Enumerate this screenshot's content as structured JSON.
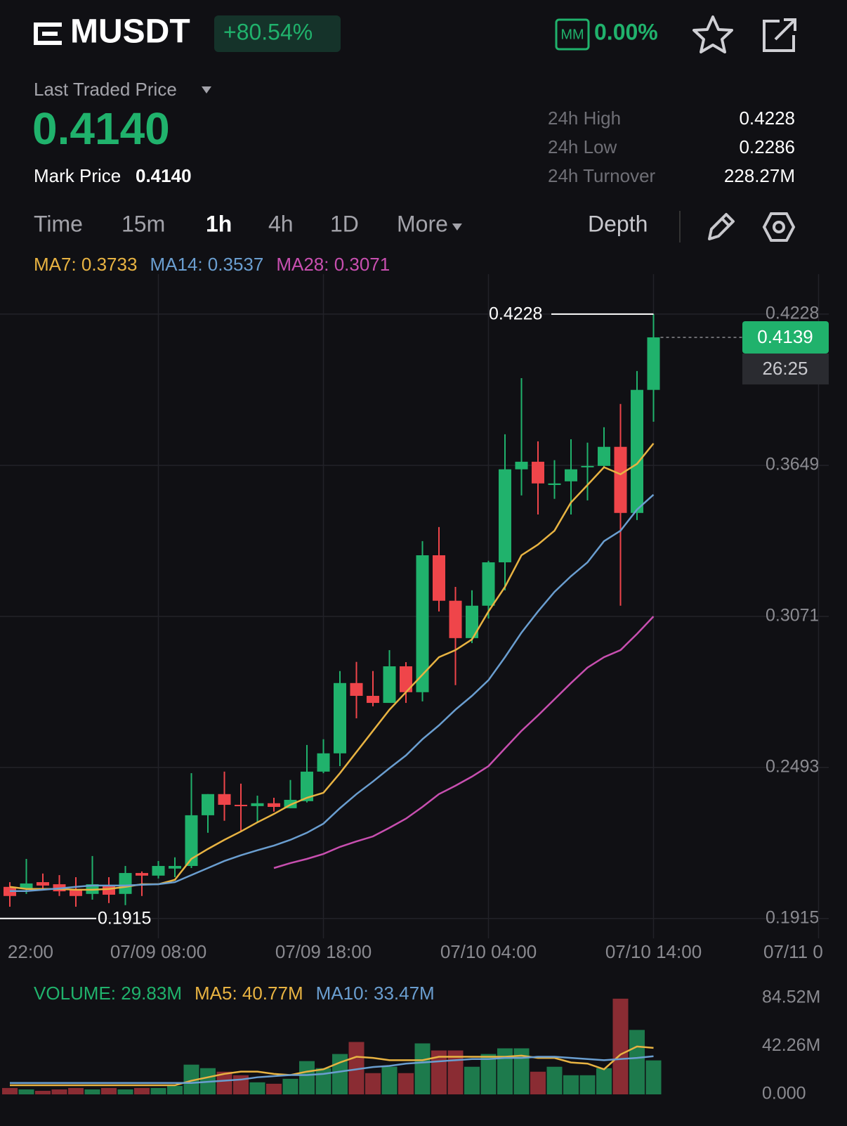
{
  "header": {
    "symbol": "MUSDT",
    "change": "+80.54%",
    "mm_badge": "MM",
    "mm_rate": "0.00%"
  },
  "price": {
    "label": "Last Traded Price",
    "last": "0.4140",
    "mark_label": "Mark Price",
    "mark": "0.4140"
  },
  "stats": [
    {
      "label": "24h High",
      "value": "0.4228"
    },
    {
      "label": "24h Low",
      "value": "0.2286"
    },
    {
      "label": "24h Turnover",
      "value": "228.27M"
    }
  ],
  "tabs": {
    "items": [
      "Time",
      "15m",
      "1h",
      "4h",
      "1D",
      "More"
    ],
    "active": 2,
    "depth": "Depth"
  },
  "chart_data": [
    {
      "type": "candlestick",
      "indicator_labels": [
        {
          "text": "MA7: 0.3733",
          "color": "#e8b342"
        },
        {
          "text": "MA14: 0.3537",
          "color": "#6a9ed0"
        },
        {
          "text": "MA28: 0.3071",
          "color": "#c84fb0"
        }
      ],
      "categories": [
        null,
        null,
        null,
        null,
        null,
        null,
        null,
        null,
        null,
        "07/09 08:00",
        null,
        null,
        null,
        null,
        null,
        null,
        null,
        null,
        null,
        "07/09 18:00",
        null,
        null,
        null,
        null,
        null,
        null,
        null,
        null,
        null,
        "07/10 04:00",
        null,
        null,
        null,
        null,
        null,
        null,
        null,
        null,
        null,
        "07/10 14:00"
      ],
      "x_edge_labels": [
        "22:00",
        "07/11 0"
      ],
      "open": [
        0.2036,
        0.2028,
        0.2054,
        0.2046,
        0.2028,
        0.2009,
        0.2041,
        0.2009,
        0.2089,
        0.2079,
        0.2106,
        0.2116,
        0.231,
        0.2391,
        0.235,
        0.2345,
        0.2356,
        0.2337,
        0.2364,
        0.2477,
        0.2547,
        0.2816,
        0.2767,
        0.274,
        0.288,
        0.2781,
        0.3305,
        0.3131,
        0.2988,
        0.3112,
        0.3278,
        0.3634,
        0.3663,
        0.3574,
        0.3588,
        0.3642,
        0.3647,
        0.372,
        0.3467,
        0.3938
      ],
      "high": [
        0.2054,
        0.2143,
        0.2087,
        0.2081,
        0.2073,
        0.2154,
        0.2073,
        0.2116,
        0.2095,
        0.2135,
        0.2149,
        0.2471,
        0.2391,
        0.2477,
        0.2431,
        0.2385,
        0.2377,
        0.2445,
        0.2579,
        0.2601,
        0.2862,
        0.2897,
        0.2862,
        0.2942,
        0.2896,
        0.3359,
        0.3413,
        0.3184,
        0.3171,
        0.3284,
        0.3768,
        0.3983,
        0.3741,
        0.3669,
        0.3749,
        0.3736,
        0.3795,
        0.3884,
        0.401,
        0.4228
      ],
      "low": [
        0.196,
        0.2009,
        0.2028,
        0.2001,
        0.196,
        0.1987,
        0.1974,
        0.1966,
        0.2001,
        0.2068,
        0.2073,
        0.2108,
        0.2243,
        0.2289,
        0.2251,
        0.2283,
        0.2324,
        0.2337,
        0.2359,
        0.2471,
        0.2498,
        0.2681,
        0.2727,
        0.274,
        0.274,
        0.2746,
        0.309,
        0.2808,
        0.2969,
        0.3063,
        0.3171,
        0.3534,
        0.3461,
        0.3521,
        0.3461,
        0.3515,
        0.3642,
        0.3112,
        0.344,
        0.3816
      ],
      "close": [
        0.2001,
        0.2049,
        0.2041,
        0.2019,
        0.2001,
        0.2046,
        0.2006,
        0.2089,
        0.2079,
        0.2116,
        0.2116,
        0.231,
        0.2391,
        0.235,
        0.2345,
        0.2356,
        0.2342,
        0.2369,
        0.2477,
        0.2547,
        0.2816,
        0.2767,
        0.274,
        0.288,
        0.2781,
        0.3305,
        0.3131,
        0.2988,
        0.3112,
        0.3278,
        0.3634,
        0.3663,
        0.358,
        0.358,
        0.3634,
        0.3647,
        0.372,
        0.3467,
        0.3938,
        0.4139
      ],
      "up_color": "#20b26c",
      "down_color": "#ef454a",
      "overlays": [
        {
          "color": "#e8b342",
          "values": [
            0.2036,
            0.2028,
            0.2028,
            0.2028,
            0.2025,
            0.2025,
            0.2028,
            0.2036,
            0.2046,
            0.2046,
            0.2063,
            0.2143,
            0.2181,
            0.2216,
            0.2248,
            0.2283,
            0.2315,
            0.235,
            0.2377,
            0.2396,
            0.2471,
            0.2552,
            0.2633,
            0.2714,
            0.2781,
            0.2848,
            0.2915,
            0.2942,
            0.2983,
            0.309,
            0.3184,
            0.3305,
            0.3346,
            0.3399,
            0.3507,
            0.3574,
            0.3642,
            0.3615,
            0.3655,
            0.3733
          ]
        },
        {
          "color": "#6a9ed0",
          "values": [
            0.202,
            0.202,
            0.2025,
            0.203,
            0.2036,
            0.2041,
            0.2041,
            0.2041,
            0.2044,
            0.2046,
            0.2054,
            0.2081,
            0.2108,
            0.2135,
            0.2157,
            0.2176,
            0.2194,
            0.2216,
            0.2243,
            0.2278,
            0.2337,
            0.2391,
            0.2439,
            0.249,
            0.2539,
            0.2601,
            0.2654,
            0.2714,
            0.2767,
            0.2827,
            0.2915,
            0.3009,
            0.309,
            0.3165,
            0.3225,
            0.3278,
            0.3359,
            0.3399,
            0.348,
            0.3537
          ]
        },
        {
          "color": "#c84fb0",
          "values": [
            null,
            null,
            null,
            null,
            null,
            null,
            null,
            null,
            null,
            null,
            null,
            null,
            null,
            null,
            null,
            null,
            0.2108,
            0.2127,
            0.2143,
            0.2162,
            0.2189,
            0.221,
            0.2229,
            0.2262,
            0.2297,
            0.2342,
            0.2391,
            0.2423,
            0.2458,
            0.2498,
            0.2566,
            0.2633,
            0.2692,
            0.2754,
            0.2816,
            0.2875,
            0.2915,
            0.2942,
            0.3004,
            0.3071
          ]
        }
      ],
      "ylim": [
        0.1839,
        0.4381
      ],
      "yticks": [
        0.4228,
        0.3649,
        0.3071,
        0.2493,
        0.1915
      ],
      "grid": true,
      "countdown": "26:25",
      "low_marker": 0.1915
    },
    {
      "type": "volume",
      "indicator_labels": [
        {
          "text": "VOLUME: 29.83M",
          "color": "#20b26c"
        },
        {
          "text": "MA5: 40.77M",
          "color": "#e8b342"
        },
        {
          "text": "MA10: 33.47M",
          "color": "#6a9ed0"
        }
      ],
      "values": [
        5.59,
        4.35,
        3.11,
        4.35,
        5.59,
        4.35,
        5.59,
        4.35,
        5.59,
        5.59,
        7.46,
        26.1,
        23.0,
        19.89,
        16.78,
        10.57,
        9.32,
        13.67,
        29.21,
        23.0,
        35.43,
        45.99,
        18.65,
        24.24,
        18.65,
        44.75,
        38.53,
        38.53,
        24.24,
        35.43,
        40.4,
        40.4,
        19.89,
        24.24,
        16.78,
        16.78,
        23.0,
        84.0,
        56.56,
        29.83
      ],
      "overlays": [
        {
          "color": "#e8b342",
          "values": [
            8,
            8,
            8,
            8,
            8,
            8,
            8,
            8,
            8,
            8,
            8,
            12,
            15,
            18,
            20,
            20,
            18,
            17,
            20,
            22,
            28,
            33,
            32,
            30,
            30,
            30,
            33,
            33,
            33,
            33,
            33,
            34,
            32,
            32,
            28,
            27,
            22,
            35,
            42,
            40.77
          ]
        },
        {
          "color": "#6a9ed0",
          "values": [
            10,
            10,
            10,
            10,
            10,
            10,
            10,
            10,
            10,
            10,
            10,
            10,
            11,
            12,
            13,
            15,
            16,
            17,
            17,
            18,
            20,
            22,
            24,
            25,
            27,
            28,
            29,
            30,
            31,
            31,
            32,
            32,
            33,
            33,
            32,
            31,
            30,
            31,
            32,
            33.47
          ]
        }
      ],
      "ylim": [
        0,
        84.52
      ],
      "yticks": [
        {
          "value": 84.52,
          "label": "84.52M"
        },
        {
          "value": 42.26,
          "label": "42.26M"
        },
        {
          "value": 0,
          "label": "0.000"
        }
      ],
      "up_color": "#1d7a4c",
      "down_color": "#8a2c33"
    }
  ]
}
